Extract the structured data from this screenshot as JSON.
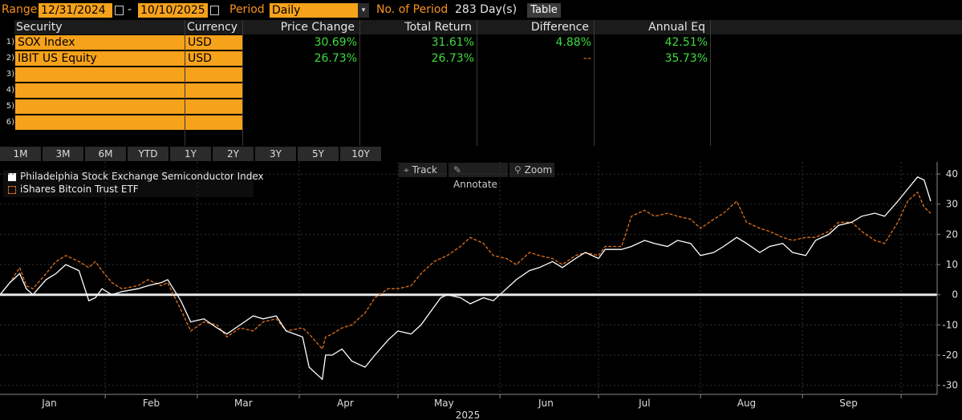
{
  "toolbar": {
    "range_label": "Range",
    "range_start": "12/31/2024",
    "range_sep": "-",
    "range_end": "10/10/2025",
    "period_label": "Period",
    "period_value": "Daily",
    "num_period_label": "No. of Period",
    "num_period_value": "283 Day(s)",
    "table_button": "Table"
  },
  "table": {
    "headers": [
      "Security",
      "Currency",
      "Price Change",
      "Total Return",
      "Difference",
      "Annual Eq"
    ],
    "rows": [
      {
        "num": "1)",
        "security": "SOX Index",
        "currency": "USD",
        "price_change": "30.69%",
        "total_return": "31.61%",
        "difference": "4.88%",
        "annual_eq": "42.51%"
      },
      {
        "num": "2)",
        "security": "IBIT US Equity",
        "currency": "USD",
        "price_change": "26.73%",
        "total_return": "26.73%",
        "difference": "--",
        "annual_eq": "35.73%"
      },
      {
        "num": "3)",
        "security": "",
        "currency": "",
        "price_change": "",
        "total_return": "",
        "difference": "",
        "annual_eq": ""
      },
      {
        "num": "4)",
        "security": "",
        "currency": "",
        "price_change": "",
        "total_return": "",
        "difference": "",
        "annual_eq": ""
      },
      {
        "num": "5)",
        "security": "",
        "currency": "",
        "price_change": "",
        "total_return": "",
        "difference": "",
        "annual_eq": ""
      },
      {
        "num": "6)",
        "security": "",
        "currency": "",
        "price_change": "",
        "total_return": "",
        "difference": "",
        "annual_eq": ""
      }
    ]
  },
  "periods": [
    "1M",
    "3M",
    "6M",
    "YTD",
    "1Y",
    "2Y",
    "3Y",
    "5Y",
    "10Y"
  ],
  "chart_tools": {
    "track": "Track",
    "annotate": "Annotate",
    "zoom": "Zoom"
  },
  "colors": {
    "accent": "#f7a21b",
    "positive": "#3ddc3d",
    "sox_line": "#ffffff",
    "ibit_line": "#e0701c"
  },
  "chart_data": {
    "type": "line",
    "legend": [
      "Philadelphia Stock Exchange Semiconductor Index",
      "iShares Bitcoin Trust ETF"
    ],
    "legend_position": "top-left",
    "xlabel": "2025",
    "x_ticks": [
      "Jan",
      "Feb",
      "Mar",
      "Apr",
      "May",
      "Jun",
      "Jul",
      "Aug",
      "Sep"
    ],
    "ylim": [
      -33,
      44
    ],
    "y_ticks": [
      40,
      30,
      20,
      10,
      0,
      -10,
      -20,
      -30
    ],
    "x_range": [
      "2024-12-31",
      "2025-10-10"
    ],
    "series": [
      {
        "name": "Philadelphia Stock Exchange Semiconductor Index",
        "style": "solid",
        "points": [
          [
            "2024-12-31",
            0
          ],
          [
            "2025-01-03",
            4
          ],
          [
            "2025-01-06",
            7
          ],
          [
            "2025-01-08",
            2
          ],
          [
            "2025-01-10",
            0
          ],
          [
            "2025-01-14",
            5
          ],
          [
            "2025-01-17",
            7
          ],
          [
            "2025-01-20",
            10
          ],
          [
            "2025-01-24",
            8
          ],
          [
            "2025-01-27",
            -2
          ],
          [
            "2025-01-29",
            -1
          ],
          [
            "2025-01-31",
            2
          ],
          [
            "2025-02-03",
            0
          ],
          [
            "2025-02-06",
            1
          ],
          [
            "2025-02-11",
            2
          ],
          [
            "2025-02-14",
            3
          ],
          [
            "2025-02-18",
            4
          ],
          [
            "2025-02-20",
            5
          ],
          [
            "2025-02-24",
            -2
          ],
          [
            "2025-02-27",
            -9
          ],
          [
            "2025-03-03",
            -8
          ],
          [
            "2025-03-07",
            -11
          ],
          [
            "2025-03-10",
            -13
          ],
          [
            "2025-03-14",
            -10
          ],
          [
            "2025-03-18",
            -7
          ],
          [
            "2025-03-21",
            -8
          ],
          [
            "2025-03-25",
            -7
          ],
          [
            "2025-03-28",
            -12
          ],
          [
            "2025-04-02",
            -14
          ],
          [
            "2025-04-04",
            -24
          ],
          [
            "2025-04-08",
            -28
          ],
          [
            "2025-04-09",
            -20
          ],
          [
            "2025-04-11",
            -20
          ],
          [
            "2025-04-14",
            -18
          ],
          [
            "2025-04-17",
            -22
          ],
          [
            "2025-04-21",
            -24
          ],
          [
            "2025-04-24",
            -20
          ],
          [
            "2025-04-28",
            -15
          ],
          [
            "2025-05-01",
            -12
          ],
          [
            "2025-05-05",
            -13
          ],
          [
            "2025-05-08",
            -10
          ],
          [
            "2025-05-12",
            -4
          ],
          [
            "2025-05-14",
            -1
          ],
          [
            "2025-05-16",
            0
          ],
          [
            "2025-05-20",
            -1
          ],
          [
            "2025-05-23",
            -3
          ],
          [
            "2025-05-27",
            -1
          ],
          [
            "2025-05-30",
            -2
          ],
          [
            "2025-06-03",
            2
          ],
          [
            "2025-06-06",
            5
          ],
          [
            "2025-06-10",
            8
          ],
          [
            "2025-06-13",
            9
          ],
          [
            "2025-06-17",
            11
          ],
          [
            "2025-06-20",
            9
          ],
          [
            "2025-06-24",
            12
          ],
          [
            "2025-06-27",
            14
          ],
          [
            "2025-07-01",
            12
          ],
          [
            "2025-07-03",
            15
          ],
          [
            "2025-07-08",
            15
          ],
          [
            "2025-07-11",
            16
          ],
          [
            "2025-07-15",
            18
          ],
          [
            "2025-07-18",
            17
          ],
          [
            "2025-07-22",
            16
          ],
          [
            "2025-07-25",
            18
          ],
          [
            "2025-07-29",
            17
          ],
          [
            "2025-08-01",
            13
          ],
          [
            "2025-08-05",
            14
          ],
          [
            "2025-08-08",
            16
          ],
          [
            "2025-08-12",
            19
          ],
          [
            "2025-08-15",
            17
          ],
          [
            "2025-08-19",
            14
          ],
          [
            "2025-08-22",
            16
          ],
          [
            "2025-08-26",
            17
          ],
          [
            "2025-08-29",
            14
          ],
          [
            "2025-09-02",
            13
          ],
          [
            "2025-09-05",
            18
          ],
          [
            "2025-09-09",
            20
          ],
          [
            "2025-09-12",
            23
          ],
          [
            "2025-09-16",
            24
          ],
          [
            "2025-09-19",
            26
          ],
          [
            "2025-09-23",
            27
          ],
          [
            "2025-09-26",
            26
          ],
          [
            "2025-09-30",
            31
          ],
          [
            "2025-10-03",
            35
          ],
          [
            "2025-10-06",
            39
          ],
          [
            "2025-10-08",
            38
          ],
          [
            "2025-10-10",
            31
          ]
        ]
      },
      {
        "name": "iShares Bitcoin Trust ETF",
        "style": "dashed",
        "points": [
          [
            "2024-12-31",
            0
          ],
          [
            "2025-01-03",
            4
          ],
          [
            "2025-01-06",
            9
          ],
          [
            "2025-01-08",
            3
          ],
          [
            "2025-01-10",
            2
          ],
          [
            "2025-01-14",
            7
          ],
          [
            "2025-01-17",
            11
          ],
          [
            "2025-01-20",
            13
          ],
          [
            "2025-01-24",
            11
          ],
          [
            "2025-01-27",
            9
          ],
          [
            "2025-01-29",
            11
          ],
          [
            "2025-01-31",
            8
          ],
          [
            "2025-02-03",
            4
          ],
          [
            "2025-02-06",
            2
          ],
          [
            "2025-02-11",
            3
          ],
          [
            "2025-02-14",
            5
          ],
          [
            "2025-02-18",
            3
          ],
          [
            "2025-02-20",
            4
          ],
          [
            "2025-02-24",
            -5
          ],
          [
            "2025-02-27",
            -12
          ],
          [
            "2025-03-03",
            -9
          ],
          [
            "2025-03-07",
            -10
          ],
          [
            "2025-03-10",
            -14
          ],
          [
            "2025-03-14",
            -11
          ],
          [
            "2025-03-18",
            -12
          ],
          [
            "2025-03-21",
            -9
          ],
          [
            "2025-03-25",
            -8
          ],
          [
            "2025-03-28",
            -12
          ],
          [
            "2025-04-02",
            -11
          ],
          [
            "2025-04-04",
            -13
          ],
          [
            "2025-04-08",
            -18
          ],
          [
            "2025-04-09",
            -14
          ],
          [
            "2025-04-11",
            -13
          ],
          [
            "2025-04-14",
            -11
          ],
          [
            "2025-04-17",
            -10
          ],
          [
            "2025-04-21",
            -6
          ],
          [
            "2025-04-24",
            -1
          ],
          [
            "2025-04-28",
            2
          ],
          [
            "2025-05-01",
            2
          ],
          [
            "2025-05-05",
            3
          ],
          [
            "2025-05-08",
            7
          ],
          [
            "2025-05-12",
            11
          ],
          [
            "2025-05-14",
            12
          ],
          [
            "2025-05-16",
            13
          ],
          [
            "2025-05-20",
            16
          ],
          [
            "2025-05-23",
            19
          ],
          [
            "2025-05-27",
            17
          ],
          [
            "2025-05-30",
            13
          ],
          [
            "2025-06-03",
            12
          ],
          [
            "2025-06-06",
            10
          ],
          [
            "2025-06-10",
            14
          ],
          [
            "2025-06-13",
            13
          ],
          [
            "2025-06-17",
            12
          ],
          [
            "2025-06-20",
            10
          ],
          [
            "2025-06-24",
            13
          ],
          [
            "2025-06-27",
            14
          ],
          [
            "2025-07-01",
            13
          ],
          [
            "2025-07-03",
            16
          ],
          [
            "2025-07-08",
            16
          ],
          [
            "2025-07-11",
            26
          ],
          [
            "2025-07-15",
            28
          ],
          [
            "2025-07-18",
            26
          ],
          [
            "2025-07-22",
            27
          ],
          [
            "2025-07-25",
            26
          ],
          [
            "2025-07-29",
            25
          ],
          [
            "2025-08-01",
            22
          ],
          [
            "2025-08-05",
            25
          ],
          [
            "2025-08-08",
            27
          ],
          [
            "2025-08-12",
            31
          ],
          [
            "2025-08-15",
            24
          ],
          [
            "2025-08-19",
            22
          ],
          [
            "2025-08-22",
            21
          ],
          [
            "2025-08-26",
            19
          ],
          [
            "2025-08-29",
            18
          ],
          [
            "2025-09-02",
            19
          ],
          [
            "2025-09-05",
            19
          ],
          [
            "2025-09-09",
            21
          ],
          [
            "2025-09-12",
            24
          ],
          [
            "2025-09-16",
            24
          ],
          [
            "2025-09-19",
            21
          ],
          [
            "2025-09-23",
            18
          ],
          [
            "2025-09-26",
            17
          ],
          [
            "2025-09-30",
            24
          ],
          [
            "2025-10-03",
            31
          ],
          [
            "2025-10-06",
            34
          ],
          [
            "2025-10-08",
            29
          ],
          [
            "2025-10-10",
            27
          ]
        ]
      }
    ]
  }
}
